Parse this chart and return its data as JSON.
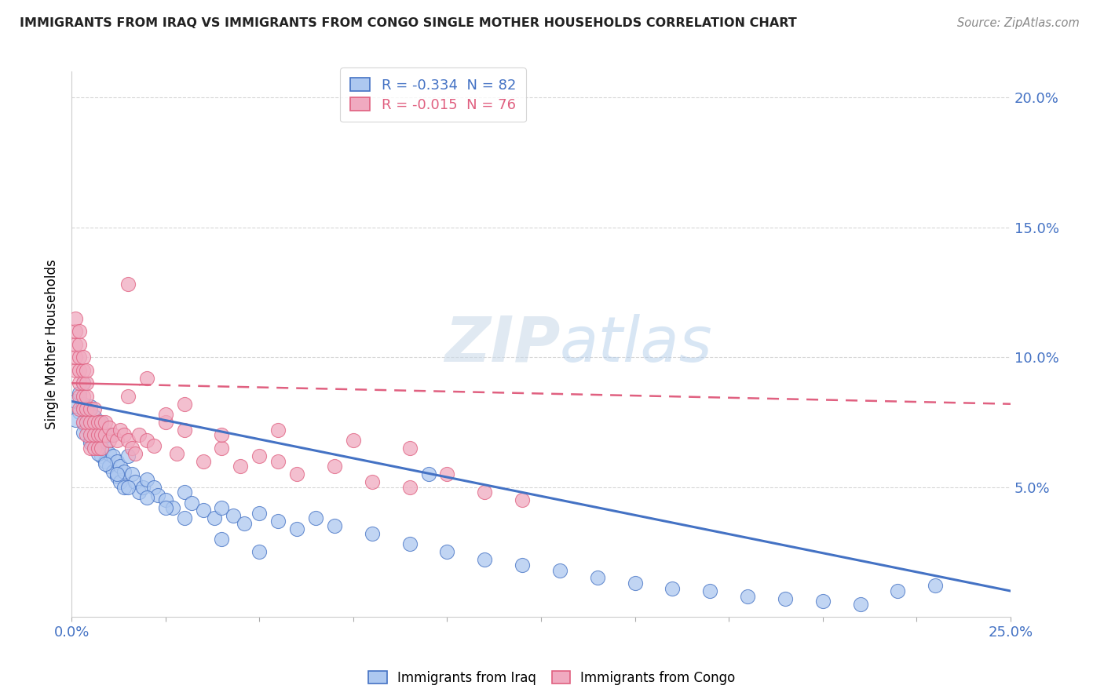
{
  "title": "IMMIGRANTS FROM IRAQ VS IMMIGRANTS FROM CONGO SINGLE MOTHER HOUSEHOLDS CORRELATION CHART",
  "source": "Source: ZipAtlas.com",
  "legend_iraq": "R = -0.334  N = 82",
  "legend_congo": "R = -0.015  N = 76",
  "color_iraq": "#adc8f0",
  "color_congo": "#f0aac0",
  "line_iraq": "#4472c4",
  "line_congo": "#e06080",
  "xlim": [
    0.0,
    0.25
  ],
  "ylim": [
    0.0,
    0.21
  ],
  "watermark_zip": "ZIP",
  "watermark_atlas": "atlas",
  "iraq_x": [
    0.001,
    0.002,
    0.002,
    0.003,
    0.003,
    0.003,
    0.004,
    0.004,
    0.005,
    0.005,
    0.005,
    0.006,
    0.006,
    0.007,
    0.007,
    0.008,
    0.008,
    0.008,
    0.009,
    0.009,
    0.01,
    0.01,
    0.01,
    0.011,
    0.011,
    0.012,
    0.012,
    0.013,
    0.013,
    0.014,
    0.014,
    0.015,
    0.016,
    0.017,
    0.018,
    0.019,
    0.02,
    0.022,
    0.023,
    0.025,
    0.027,
    0.03,
    0.032,
    0.035,
    0.038,
    0.04,
    0.043,
    0.046,
    0.05,
    0.055,
    0.06,
    0.065,
    0.07,
    0.08,
    0.09,
    0.095,
    0.1,
    0.11,
    0.12,
    0.13,
    0.14,
    0.15,
    0.16,
    0.17,
    0.18,
    0.19,
    0.2,
    0.21,
    0.22,
    0.23,
    0.001,
    0.003,
    0.005,
    0.007,
    0.009,
    0.012,
    0.015,
    0.02,
    0.025,
    0.03,
    0.04,
    0.05
  ],
  "iraq_y": [
    0.083,
    0.079,
    0.086,
    0.075,
    0.082,
    0.09,
    0.073,
    0.08,
    0.068,
    0.074,
    0.081,
    0.07,
    0.077,
    0.065,
    0.072,
    0.062,
    0.068,
    0.075,
    0.06,
    0.066,
    0.058,
    0.063,
    0.07,
    0.056,
    0.062,
    0.054,
    0.06,
    0.052,
    0.058,
    0.05,
    0.056,
    0.062,
    0.055,
    0.052,
    0.048,
    0.05,
    0.053,
    0.05,
    0.047,
    0.045,
    0.042,
    0.048,
    0.044,
    0.041,
    0.038,
    0.042,
    0.039,
    0.036,
    0.04,
    0.037,
    0.034,
    0.038,
    0.035,
    0.032,
    0.028,
    0.055,
    0.025,
    0.022,
    0.02,
    0.018,
    0.015,
    0.013,
    0.011,
    0.01,
    0.008,
    0.007,
    0.006,
    0.005,
    0.01,
    0.012,
    0.076,
    0.071,
    0.067,
    0.063,
    0.059,
    0.055,
    0.05,
    0.046,
    0.042,
    0.038,
    0.03,
    0.025
  ],
  "congo_x": [
    0.001,
    0.001,
    0.001,
    0.001,
    0.001,
    0.002,
    0.002,
    0.002,
    0.002,
    0.002,
    0.002,
    0.002,
    0.003,
    0.003,
    0.003,
    0.003,
    0.003,
    0.003,
    0.004,
    0.004,
    0.004,
    0.004,
    0.004,
    0.004,
    0.005,
    0.005,
    0.005,
    0.005,
    0.006,
    0.006,
    0.006,
    0.006,
    0.007,
    0.007,
    0.007,
    0.008,
    0.008,
    0.008,
    0.009,
    0.009,
    0.01,
    0.01,
    0.011,
    0.012,
    0.013,
    0.014,
    0.015,
    0.015,
    0.016,
    0.017,
    0.018,
    0.02,
    0.022,
    0.025,
    0.028,
    0.03,
    0.035,
    0.04,
    0.045,
    0.05,
    0.055,
    0.06,
    0.07,
    0.08,
    0.09,
    0.1,
    0.11,
    0.12,
    0.015,
    0.02,
    0.025,
    0.03,
    0.04,
    0.055,
    0.075,
    0.09
  ],
  "congo_y": [
    0.095,
    0.1,
    0.105,
    0.11,
    0.115,
    0.08,
    0.085,
    0.09,
    0.095,
    0.1,
    0.105,
    0.11,
    0.075,
    0.08,
    0.085,
    0.09,
    0.095,
    0.1,
    0.07,
    0.075,
    0.08,
    0.085,
    0.09,
    0.095,
    0.065,
    0.07,
    0.075,
    0.08,
    0.065,
    0.07,
    0.075,
    0.08,
    0.065,
    0.07,
    0.075,
    0.065,
    0.07,
    0.075,
    0.07,
    0.075,
    0.068,
    0.073,
    0.07,
    0.068,
    0.072,
    0.07,
    0.068,
    0.128,
    0.065,
    0.063,
    0.07,
    0.068,
    0.066,
    0.075,
    0.063,
    0.072,
    0.06,
    0.065,
    0.058,
    0.062,
    0.06,
    0.055,
    0.058,
    0.052,
    0.05,
    0.055,
    0.048,
    0.045,
    0.085,
    0.092,
    0.078,
    0.082,
    0.07,
    0.072,
    0.068,
    0.065
  ]
}
